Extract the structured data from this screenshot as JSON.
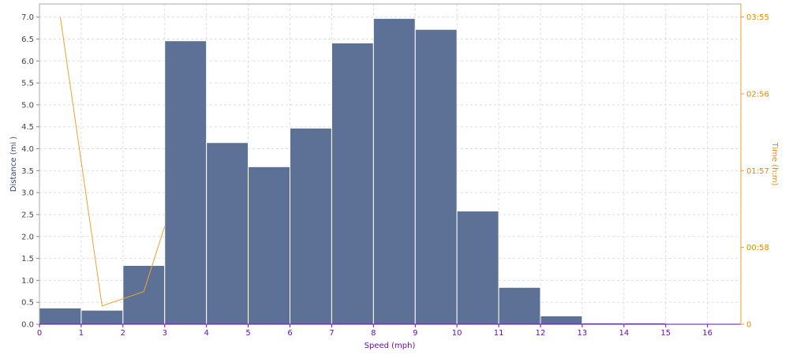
{
  "chart_data": {
    "type": "bar",
    "xlabel": "Speed (mph)",
    "ylabel": "Distance (mi )",
    "y2label": "Time (h:m)",
    "x_ticks": [
      "0",
      "1",
      "2",
      "3",
      "4",
      "5",
      "6",
      "7",
      "8",
      "9",
      "10",
      "11",
      "12",
      "13",
      "14",
      "15",
      "16"
    ],
    "y_ticks": [
      "0.0",
      "0.5",
      "1.0",
      "1.5",
      "2.0",
      "2.5",
      "3.0",
      "3.5",
      "4.0",
      "4.5",
      "5.0",
      "5.5",
      "6.0",
      "6.5",
      "7.0"
    ],
    "y2_ticks": [
      "0",
      "00:58",
      "01:57",
      "02:56",
      "03:55"
    ],
    "xlim": [
      0,
      16.8
    ],
    "ylim": [
      0,
      7.3
    ],
    "grid": true,
    "bins": [
      {
        "from": 0,
        "to": 1,
        "value": 0.37
      },
      {
        "from": 1,
        "to": 2,
        "value": 0.32
      },
      {
        "from": 2,
        "to": 3,
        "value": 1.34
      },
      {
        "from": 3,
        "to": 4,
        "value": 6.46
      },
      {
        "from": 4,
        "to": 5,
        "value": 4.14
      },
      {
        "from": 5,
        "to": 6,
        "value": 3.59
      },
      {
        "from": 6,
        "to": 7,
        "value": 4.47
      },
      {
        "from": 7,
        "to": 8,
        "value": 6.41
      },
      {
        "from": 8,
        "to": 9,
        "value": 6.97
      },
      {
        "from": 9,
        "to": 10,
        "value": 6.72
      },
      {
        "from": 10,
        "to": 11,
        "value": 2.58
      },
      {
        "from": 11,
        "to": 12,
        "value": 0.84
      },
      {
        "from": 12,
        "to": 13,
        "value": 0.19
      },
      {
        "from": 13,
        "to": 14,
        "value": 0.03
      },
      {
        "from": 14,
        "to": 15,
        "value": 0.03
      },
      {
        "from": 15,
        "to": 16,
        "value": 0.0
      }
    ],
    "time_series": {
      "y2lim_minutes": [
        0,
        245
      ],
      "points": [
        {
          "x": 0.5,
          "minutes": 235
        },
        {
          "x": 1.5,
          "minutes": 14
        },
        {
          "x": 2.5,
          "minutes": 25
        },
        {
          "x": 3.0,
          "minutes": 75
        }
      ]
    },
    "colors": {
      "bar": "#5d7096",
      "bar_edge": "#ffffff",
      "line": "#f0a030",
      "grid": "#dddddd",
      "frame": "#aaaaaa"
    }
  }
}
